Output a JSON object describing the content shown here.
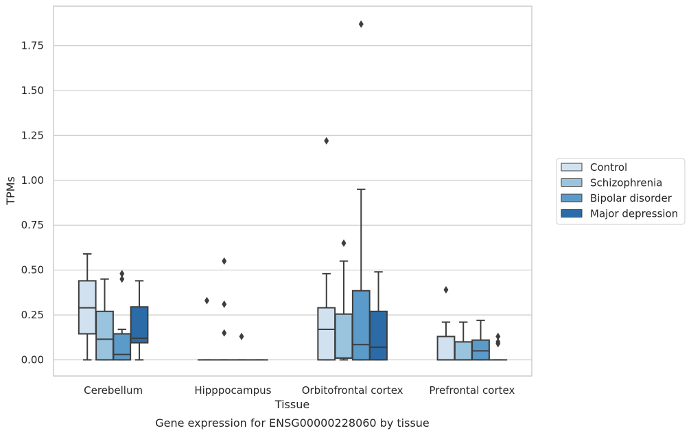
{
  "chart_data": {
    "type": "boxplot",
    "title": "",
    "caption": "Gene expression for ENSG00000228060 by tissue",
    "xlabel": "Tissue",
    "ylabel": "TPMs",
    "ylim": [
      -0.09,
      1.97
    ],
    "yticks": [
      "0.00",
      "0.25",
      "0.50",
      "0.75",
      "1.00",
      "1.25",
      "1.50",
      "1.75"
    ],
    "grid": "horizontal",
    "legend_position": "right",
    "categories": [
      "Cerebellum",
      "Hipppocampus",
      "Orbitofrontal cortex",
      "Prefrontal cortex"
    ],
    "series": [
      {
        "name": "Control",
        "color": "#d1e1f0",
        "boxes": [
          {
            "whislo": 0.0,
            "q1": 0.145,
            "med": 0.29,
            "q3": 0.44,
            "whishi": 0.59,
            "fliers": []
          },
          {
            "whislo": 0.0,
            "q1": 0.0,
            "med": 0.0,
            "q3": 0.0,
            "whishi": 0.0,
            "fliers": [
              0.33
            ]
          },
          {
            "whislo": 0.0,
            "q1": 0.0,
            "med": 0.17,
            "q3": 0.29,
            "whishi": 0.48,
            "fliers": [
              1.22
            ]
          },
          {
            "whislo": 0.0,
            "q1": 0.0,
            "med": 0.0,
            "q3": 0.13,
            "whishi": 0.21,
            "fliers": [
              0.39
            ]
          }
        ]
      },
      {
        "name": "Schizophrenia",
        "color": "#9ac4de",
        "boxes": [
          {
            "whislo": 0.0,
            "q1": 0.0,
            "med": 0.115,
            "q3": 0.27,
            "whishi": 0.45,
            "fliers": []
          },
          {
            "whislo": 0.0,
            "q1": 0.0,
            "med": 0.0,
            "q3": 0.0,
            "whishi": 0.0,
            "fliers": [
              0.55,
              0.31,
              0.15
            ]
          },
          {
            "whislo": 0.0,
            "q1": 0.01,
            "med": 0.01,
            "q3": 0.255,
            "whishi": 0.55,
            "fliers": [
              0.65
            ]
          },
          {
            "whislo": 0.0,
            "q1": 0.0,
            "med": 0.0,
            "q3": 0.1,
            "whishi": 0.21,
            "fliers": []
          }
        ]
      },
      {
        "name": "Bipolar disorder",
        "color": "#5b9bc9",
        "boxes": [
          {
            "whislo": 0.0,
            "q1": 0.0,
            "med": 0.03,
            "q3": 0.145,
            "whishi": 0.17,
            "fliers": [
              0.48,
              0.45
            ]
          },
          {
            "whislo": 0.0,
            "q1": 0.0,
            "med": 0.0,
            "q3": 0.0,
            "whishi": 0.0,
            "fliers": [
              0.13
            ]
          },
          {
            "whislo": 0.0,
            "q1": 0.0,
            "med": 0.085,
            "q3": 0.385,
            "whishi": 0.95,
            "fliers": [
              1.87
            ]
          },
          {
            "whislo": 0.0,
            "q1": 0.0,
            "med": 0.05,
            "q3": 0.11,
            "whishi": 0.22,
            "fliers": []
          }
        ]
      },
      {
        "name": "Major depression",
        "color": "#2b6ba7",
        "boxes": [
          {
            "whislo": 0.0,
            "q1": 0.095,
            "med": 0.12,
            "q3": 0.295,
            "whishi": 0.44,
            "fliers": []
          },
          {
            "whislo": 0.0,
            "q1": 0.0,
            "med": 0.0,
            "q3": 0.0,
            "whishi": 0.0,
            "fliers": []
          },
          {
            "whislo": 0.0,
            "q1": 0.0,
            "med": 0.07,
            "q3": 0.27,
            "whishi": 0.49,
            "fliers": []
          },
          {
            "whislo": 0.0,
            "q1": 0.0,
            "med": 0.0,
            "q3": 0.0,
            "whishi": 0.0,
            "fliers": [
              0.13,
              0.1,
              0.09
            ]
          }
        ]
      }
    ],
    "colors": {
      "axes_edge": "#cccccc",
      "grid": "#d0d0d0",
      "box_edge": "#3d3d3d"
    }
  }
}
